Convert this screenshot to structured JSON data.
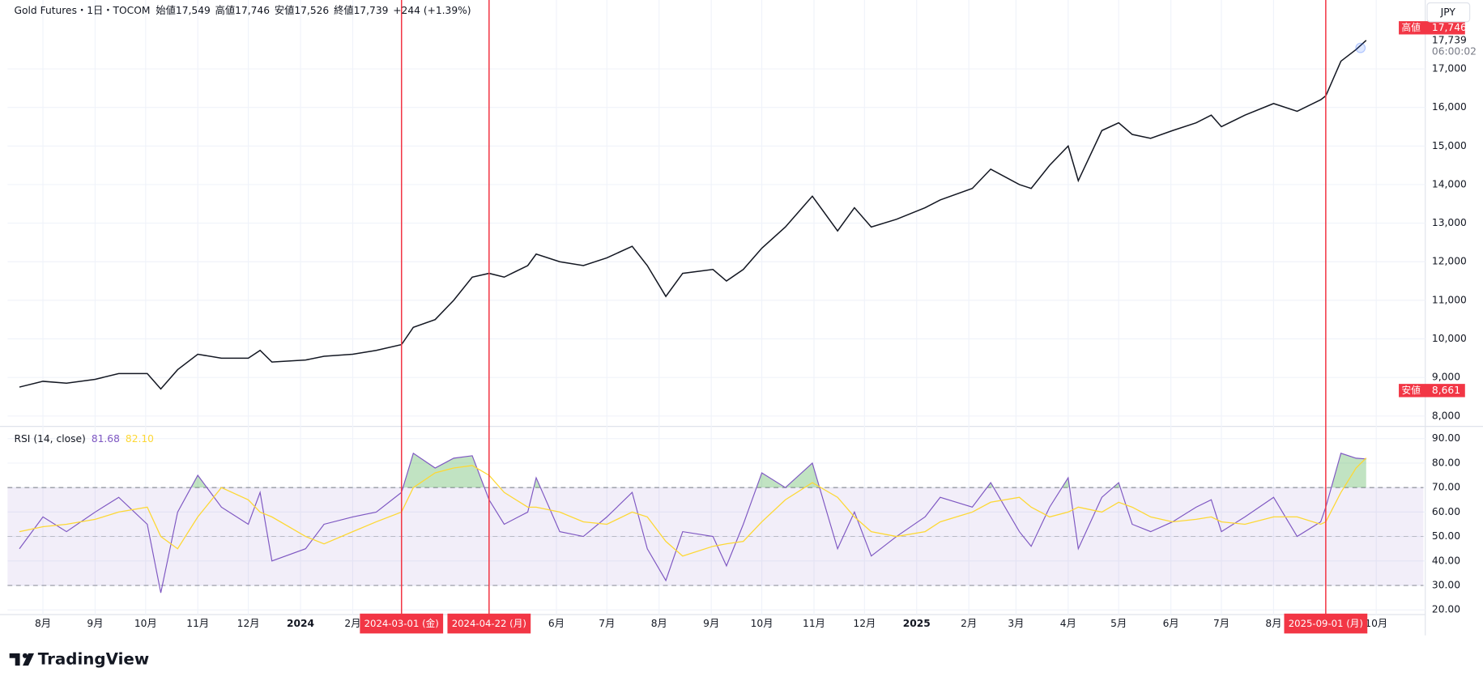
{
  "header": {
    "symbol": "Gold Futures・1日・TOCOM",
    "ohlc": [
      {
        "label": "始値",
        "value": "17,549"
      },
      {
        "label": "高値",
        "value": "17,746"
      },
      {
        "label": "安値",
        "value": "17,526"
      },
      {
        "label": "終値",
        "value": "17,739"
      }
    ],
    "change": "+244 (+1.39%)",
    "currency": "JPY"
  },
  "chart_data": [
    {
      "type": "line",
      "color": "#131722",
      "x": [
        "2023-07-18",
        "2023-08-01",
        "2023-08-15",
        "2023-09-01",
        "2023-09-15",
        "2023-10-02",
        "2023-10-10",
        "2023-10-20",
        "2023-11-01",
        "2023-11-15",
        "2023-12-01",
        "2023-12-08",
        "2023-12-15",
        "2024-01-04",
        "2024-01-15",
        "2024-02-01",
        "2024-02-15",
        "2024-03-01",
        "2024-03-08",
        "2024-03-21",
        "2024-04-01",
        "2024-04-12",
        "2024-04-22",
        "2024-05-01",
        "2024-05-15",
        "2024-05-20",
        "2024-06-03",
        "2024-06-17",
        "2024-07-01",
        "2024-07-16",
        "2024-07-25",
        "2024-08-05",
        "2024-08-15",
        "2024-09-02",
        "2024-09-10",
        "2024-09-20",
        "2024-10-01",
        "2024-10-15",
        "2024-10-31",
        "2024-11-15",
        "2024-11-25",
        "2024-12-05",
        "2024-12-20",
        "2025-01-06",
        "2025-01-15",
        "2025-02-03",
        "2025-02-14",
        "2025-03-03",
        "2025-03-10",
        "2025-03-21",
        "2025-04-01",
        "2025-04-07",
        "2025-04-21",
        "2025-05-01",
        "2025-05-09",
        "2025-05-20",
        "2025-06-02",
        "2025-06-16",
        "2025-06-25",
        "2025-07-01",
        "2025-07-15",
        "2025-08-01",
        "2025-08-15",
        "2025-08-29",
        "2025-09-01",
        "2025-09-10",
        "2025-09-19",
        "2025-09-25"
      ],
      "values": [
        8750,
        8900,
        8850,
        8950,
        9100,
        9100,
        8700,
        9200,
        9600,
        9500,
        9500,
        9700,
        9400,
        9450,
        9550,
        9600,
        9700,
        9850,
        10300,
        10500,
        11000,
        11600,
        11700,
        11600,
        11900,
        12200,
        12000,
        11900,
        12100,
        12400,
        11900,
        11100,
        11700,
        11800,
        11500,
        11800,
        12350,
        12900,
        13700,
        12800,
        13400,
        12900,
        13100,
        13400,
        13600,
        13900,
        14400,
        14000,
        13900,
        14500,
        15000,
        14100,
        15400,
        15600,
        15300,
        15200,
        15400,
        15600,
        15800,
        15500,
        15800,
        16100,
        15900,
        16200,
        16300,
        17200,
        17500,
        17739
      ],
      "xlim": [
        "2023-07-11",
        "2025-10-29"
      ],
      "xticks": [
        {
          "value": "2023-08-01",
          "label": "8月"
        },
        {
          "value": "2023-09-01",
          "label": "9月"
        },
        {
          "value": "2023-10-01",
          "label": "10月"
        },
        {
          "value": "2023-11-01",
          "label": "11月"
        },
        {
          "value": "2023-12-01",
          "label": "12月"
        },
        {
          "value": "2024-01-01",
          "label": "2024"
        },
        {
          "value": "2024-02-01",
          "label": "2月"
        },
        {
          "value": "2024-06-01",
          "label": "6月"
        },
        {
          "value": "2024-07-01",
          "label": "7月"
        },
        {
          "value": "2024-08-01",
          "label": "8月"
        },
        {
          "value": "2024-09-01",
          "label": "9月"
        },
        {
          "value": "2024-10-01",
          "label": "10月"
        },
        {
          "value": "2024-11-01",
          "label": "11月"
        },
        {
          "value": "2024-12-01",
          "label": "12月"
        },
        {
          "value": "2025-01-01",
          "label": "2025"
        },
        {
          "value": "2025-02-01",
          "label": "2月"
        },
        {
          "value": "2025-03-01",
          "label": "3月"
        },
        {
          "value": "2025-04-01",
          "label": "4月"
        },
        {
          "value": "2025-05-01",
          "label": "5月"
        },
        {
          "value": "2025-06-01",
          "label": "6月"
        },
        {
          "value": "2025-07-01",
          "label": "7月"
        },
        {
          "value": "2025-08-01",
          "label": "8月"
        },
        {
          "value": "2025-10-01",
          "label": "10月"
        }
      ],
      "ylim": [
        7755,
        18540
      ],
      "yticks": [
        {
          "value": 8000,
          "label": "8,000"
        },
        {
          "value": 9000,
          "label": "9,000"
        },
        {
          "value": 10000,
          "label": "10,000"
        },
        {
          "value": 11000,
          "label": "11,000"
        },
        {
          "value": 12000,
          "label": "12,000"
        },
        {
          "value": 13000,
          "label": "13,000"
        },
        {
          "value": 14000,
          "label": "14,000"
        },
        {
          "value": 15000,
          "label": "15,000"
        },
        {
          "value": 16000,
          "label": "16,000"
        },
        {
          "value": 17000,
          "label": "17,000"
        }
      ],
      "grid": true,
      "markers": [
        {
          "value": "2024-03-01",
          "label": "2024-03-01 (金)"
        },
        {
          "value": "2024-04-22",
          "label": "2024-04-22 (月)"
        },
        {
          "value": "2025-09-01",
          "label": "2025-09-01 (月)"
        }
      ],
      "marker_color": "#f23645",
      "high_marker": {
        "name": "高値",
        "value": 17746,
        "label": "17,746"
      },
      "low_marker": {
        "name": "安値",
        "value": 8661,
        "label": "8,661"
      },
      "last_price": {
        "value": 17739,
        "label": "17,739",
        "countdown": "06:00:02"
      }
    },
    {
      "type": "line",
      "title": "RSI (14, close)",
      "x": [
        "2023-07-18",
        "2023-08-01",
        "2023-08-15",
        "2023-09-01",
        "2023-09-15",
        "2023-10-02",
        "2023-10-10",
        "2023-10-20",
        "2023-11-01",
        "2023-11-15",
        "2023-12-01",
        "2023-12-08",
        "2023-12-15",
        "2024-01-04",
        "2024-01-15",
        "2024-02-01",
        "2024-02-15",
        "2024-03-01",
        "2024-03-08",
        "2024-03-21",
        "2024-04-01",
        "2024-04-12",
        "2024-04-22",
        "2024-05-01",
        "2024-05-15",
        "2024-05-20",
        "2024-06-03",
        "2024-06-17",
        "2024-07-01",
        "2024-07-16",
        "2024-07-25",
        "2024-08-05",
        "2024-08-15",
        "2024-09-02",
        "2024-09-10",
        "2024-09-20",
        "2024-10-01",
        "2024-10-15",
        "2024-10-31",
        "2024-11-15",
        "2024-11-25",
        "2024-12-05",
        "2024-12-20",
        "2025-01-06",
        "2025-01-15",
        "2025-02-03",
        "2025-02-14",
        "2025-03-03",
        "2025-03-10",
        "2025-03-21",
        "2025-04-01",
        "2025-04-07",
        "2025-04-21",
        "2025-05-01",
        "2025-05-09",
        "2025-05-20",
        "2025-06-02",
        "2025-06-16",
        "2025-06-25",
        "2025-07-01",
        "2025-07-15",
        "2025-08-01",
        "2025-08-15",
        "2025-08-29",
        "2025-09-01",
        "2025-09-10",
        "2025-09-19",
        "2025-09-25"
      ],
      "series": [
        {
          "color": "#7e57c2",
          "values": [
            45,
            58,
            52,
            60,
            66,
            55,
            27,
            60,
            75,
            62,
            55,
            68,
            40,
            45,
            55,
            58,
            60,
            68,
            84,
            78,
            82,
            83,
            65,
            55,
            60,
            74,
            52,
            50,
            58,
            68,
            45,
            32,
            52,
            50,
            38,
            55,
            76,
            70,
            80,
            45,
            60,
            42,
            50,
            58,
            66,
            62,
            72,
            52,
            46,
            62,
            74,
            45,
            66,
            72,
            55,
            52,
            56,
            62,
            65,
            52,
            58,
            66,
            50,
            56,
            62,
            84,
            82,
            81.68
          ]
        },
        {
          "color": "#fdd835",
          "values": [
            52,
            54,
            55,
            57,
            60,
            62,
            50,
            45,
            58,
            70,
            65,
            60,
            58,
            50,
            47,
            52,
            56,
            60,
            70,
            76,
            78,
            79,
            75,
            68,
            62,
            62,
            60,
            56,
            55,
            60,
            58,
            48,
            42,
            46,
            47,
            48,
            56,
            65,
            72,
            66,
            58,
            52,
            50,
            52,
            56,
            60,
            64,
            66,
            62,
            58,
            60,
            62,
            60,
            64,
            62,
            58,
            56,
            57,
            58,
            56,
            55,
            58,
            58,
            55,
            56,
            68,
            78,
            82.1
          ]
        }
      ],
      "legend": [
        {
          "value": 81.68,
          "label": "81.68"
        },
        {
          "value": 82.1,
          "label": "82.10"
        }
      ],
      "xlim": [
        "2023-07-11",
        "2025-10-29"
      ],
      "ylim": [
        18.1,
        94.6
      ],
      "yticks": [
        {
          "value": 20,
          "label": "20.00"
        },
        {
          "value": 30,
          "label": "30.00"
        },
        {
          "value": 40,
          "label": "40.00"
        },
        {
          "value": 50,
          "label": "50.00"
        },
        {
          "value": 60,
          "label": "60.00"
        },
        {
          "value": 70,
          "label": "70.00"
        },
        {
          "value": 80,
          "label": "80.00"
        },
        {
          "value": 90,
          "label": "90.00"
        }
      ],
      "bands": {
        "upper": 70,
        "middle": 50,
        "lower": 30
      }
    }
  ],
  "footer": {
    "brand": "TradingView"
  }
}
